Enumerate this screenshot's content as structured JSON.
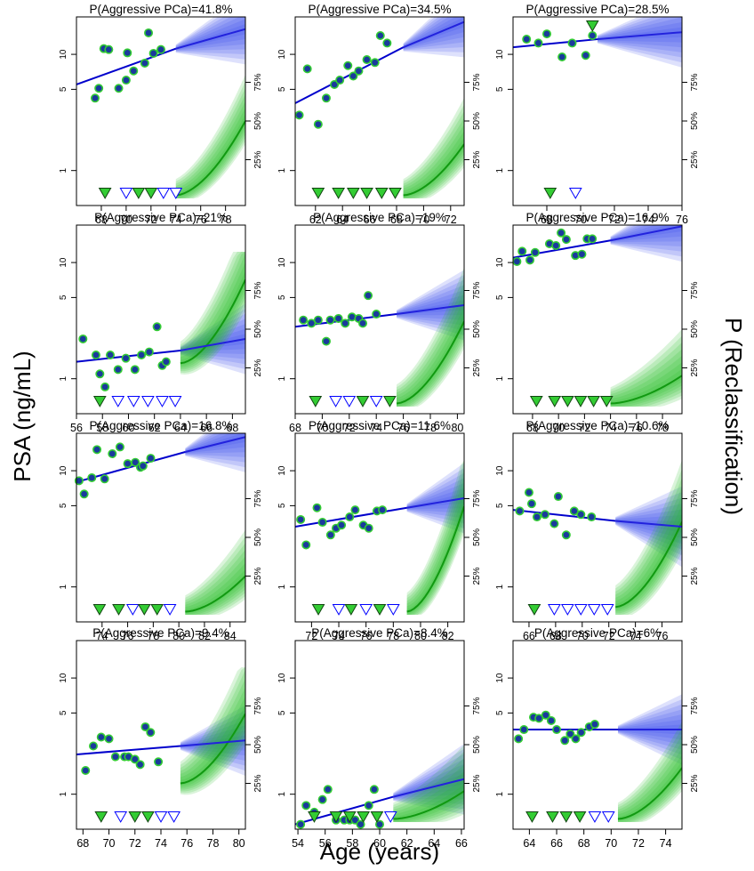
{
  "figure": {
    "y_axis_title": "PSA (ng/mL)",
    "x_axis_title": "Age (years)",
    "right_axis_title": "P (Reclassification)",
    "psa_tick_labels": [
      "1",
      "5",
      "10"
    ],
    "prob_tick_labels": [
      "25%",
      "50%",
      "75%"
    ],
    "colors": {
      "line": "#0000cc",
      "point_fill": "#1a3a9c",
      "point_edge": "#33cc33",
      "fan_blue": "#3344ee",
      "fan_green": "#22bb22",
      "marker_green": "#33cc33",
      "marker_open": "#0000ff"
    }
  },
  "chart_data": [
    {
      "type": "scatter",
      "title": "P(Aggressive PCa)=41.8%",
      "xlim": [
        66,
        79.6
      ],
      "xticks": [
        68,
        70,
        72,
        74,
        76,
        78
      ],
      "ylim_log": [
        0.5,
        21
      ],
      "age": [
        67.5,
        67.8,
        68.2,
        68.6,
        69.4,
        70,
        70.1,
        70.6,
        71.5,
        71.8,
        72.2,
        72.8
      ],
      "psa": [
        4.2,
        5.1,
        11.2,
        11.0,
        5.1,
        6.0,
        10.3,
        7.2,
        8.4,
        15.3,
        10.2,
        11.0
      ],
      "trend": {
        "x_start": 66,
        "y_start": 5.5,
        "x_end": 74,
        "y_end": 11.2
      },
      "projection": {
        "x_start": 74,
        "y_start": 11.2,
        "x_end": 79.6,
        "y_end": 16.5,
        "spread": 0.7
      },
      "prob_curve": {
        "start": 0.02,
        "end": 0.5,
        "spread": 0.3
      },
      "biopsy_ages": [
        68.3,
        70,
        71,
        72,
        73,
        74
      ],
      "biopsy_reclassified": [
        true,
        false,
        true,
        true,
        false,
        false
      ]
    },
    {
      "type": "scatter",
      "title": "P(Aggressive PCa)=34.5%",
      "xlim": [
        60.5,
        73
      ],
      "xticks": [
        62,
        64,
        66,
        68,
        70,
        72
      ],
      "ylim_log": [
        0.5,
        21
      ],
      "age": [
        60.8,
        61.4,
        62.2,
        62.8,
        63.4,
        63.8,
        64.4,
        64.8,
        65.2,
        65.8,
        66.4,
        66.8,
        67.3
      ],
      "psa": [
        3.0,
        7.5,
        2.5,
        4.2,
        5.5,
        6.0,
        8.0,
        6.5,
        7.2,
        9.0,
        8.5,
        14.5,
        12.5
      ],
      "trend": {
        "x_start": 60.5,
        "y_start": 3.8,
        "x_end": 68.5,
        "y_end": 11.5
      },
      "projection": {
        "x_start": 68.5,
        "y_start": 11.5,
        "x_end": 73,
        "y_end": 19,
        "spread": 0.7
      },
      "prob_curve": {
        "start": 0.02,
        "end": 0.35,
        "spread": 0.3
      },
      "biopsy_ages": [
        62.2,
        63.7,
        64.8,
        65.8,
        66.9,
        67.9
      ],
      "biopsy_reclassified": [
        true,
        true,
        true,
        true,
        true,
        true
      ]
    },
    {
      "type": "scatter",
      "title": "P(Aggressive PCa)=28.5%",
      "xlim": [
        66,
        76
      ],
      "xticks": [
        68,
        70,
        72,
        74,
        76
      ],
      "ylim_log": [
        0.5,
        21
      ],
      "age": [
        66.8,
        67.5,
        68,
        68.9,
        69.5,
        70.3,
        70.7
      ],
      "psa": [
        13.5,
        12.5,
        15.0,
        9.5,
        12.5,
        9.8,
        14.5
      ],
      "trend": {
        "x_start": 66,
        "y_start": 11.5,
        "x_end": 71,
        "y_end": 13.5
      },
      "projection": {
        "x_start": 71,
        "y_start": 13.5,
        "x_end": 76,
        "y_end": 15.5,
        "spread": 0.7
      },
      "prob_curve": {
        "start": 1,
        "end": 1,
        "spread": 0
      },
      "biopsy_ages": [
        68.2,
        69.7,
        70.7
      ],
      "biopsy_reclassified": [
        true,
        false,
        true
      ],
      "biopsy_marker_top": [
        false,
        false,
        true
      ]
    },
    {
      "type": "scatter",
      "title": "P(Aggressive PCa)=21%",
      "xlim": [
        56,
        69
      ],
      "xticks": [
        56,
        58,
        60,
        62,
        64,
        66,
        68
      ],
      "ylim_log": [
        0.5,
        21
      ],
      "age": [
        56.5,
        57.5,
        57.8,
        58.2,
        58.6,
        59.2,
        59.8,
        60.5,
        61,
        61.6,
        62.2,
        62.6,
        62.9
      ],
      "psa": [
        2.2,
        1.6,
        1.1,
        0.85,
        1.6,
        1.2,
        1.5,
        1.2,
        1.6,
        1.7,
        2.8,
        1.3,
        1.4
      ],
      "trend": {
        "x_start": 56,
        "y_start": 1.4,
        "x_end": 64,
        "y_end": 1.75
      },
      "projection": {
        "x_start": 64,
        "y_start": 1.75,
        "x_end": 69,
        "y_end": 2.2,
        "spread": 0.7
      },
      "prob_curve": {
        "start": 0.28,
        "end": 0.82,
        "spread": 0.4
      },
      "biopsy_ages": [
        57.8,
        59.2,
        60.4,
        61.5,
        62.6,
        63.6
      ],
      "biopsy_reclassified": [
        true,
        false,
        false,
        false,
        false,
        false
      ]
    },
    {
      "type": "scatter",
      "title": "P(Aggressive PCa)=19%",
      "xlim": [
        68,
        80.5
      ],
      "xticks": [
        68,
        70,
        72,
        74,
        76,
        78,
        80
      ],
      "ylim_log": [
        0.5,
        21
      ],
      "age": [
        68.6,
        69.2,
        69.7,
        70.3,
        70.6,
        71.2,
        71.7,
        72.2,
        72.7,
        73,
        73.4,
        74
      ],
      "psa": [
        3.2,
        3.0,
        3.2,
        2.1,
        3.2,
        3.3,
        3.0,
        3.4,
        3.3,
        3.0,
        5.2,
        3.6
      ],
      "trend": {
        "x_start": 68,
        "y_start": 2.8,
        "x_end": 75.5,
        "y_end": 3.6
      },
      "projection": {
        "x_start": 75.5,
        "y_start": 3.6,
        "x_end": 80.5,
        "y_end": 4.3,
        "spread": 0.7
      },
      "prob_curve": {
        "start": 0.02,
        "end": 0.55,
        "spread": 0.35
      },
      "biopsy_ages": [
        69.5,
        71,
        72,
        73,
        74,
        75
      ],
      "biopsy_reclassified": [
        true,
        false,
        false,
        true,
        false,
        true
      ]
    },
    {
      "type": "scatter",
      "title": "P(Aggressive PCa)=16.9%",
      "xlim": [
        66.5,
        79.5
      ],
      "xticks": [
        68,
        70,
        72,
        74,
        76,
        78
      ],
      "ylim_log": [
        0.5,
        21
      ],
      "age": [
        66.8,
        67.2,
        67.8,
        68.2,
        69.3,
        69.8,
        70.2,
        70.6,
        71.3,
        71.8,
        72.2,
        72.6
      ],
      "psa": [
        10.2,
        12.5,
        10.5,
        12.2,
        14.5,
        14.0,
        18.0,
        15.8,
        11.5,
        11.8,
        16.0,
        16.0
      ],
      "trend": {
        "x_start": 66.5,
        "y_start": 11.0,
        "x_end": 74,
        "y_end": 15.5
      },
      "projection": {
        "x_start": 74,
        "y_start": 15.5,
        "x_end": 79.5,
        "y_end": 20.5,
        "spread": 0.7
      },
      "prob_curve": {
        "start": 0.02,
        "end": 0.2,
        "spread": 0.3
      },
      "biopsy_ages": [
        68.3,
        69.7,
        70.7,
        71.7,
        72.7,
        73.7
      ],
      "biopsy_reclassified": [
        true,
        true,
        true,
        true,
        true,
        true
      ]
    },
    {
      "type": "scatter",
      "title": "P(Aggressive PCa)=16.8%",
      "xlim": [
        72,
        85.2
      ],
      "xticks": [
        74,
        76,
        78,
        80,
        82,
        84
      ],
      "ylim_log": [
        0.5,
        21
      ],
      "age": [
        72.2,
        72.6,
        73.2,
        73.6,
        74.2,
        74.8,
        75.4,
        76,
        76.6,
        77,
        77.2,
        77.8
      ],
      "psa": [
        8.2,
        6.3,
        8.7,
        15.2,
        8.5,
        14.0,
        16.0,
        11.5,
        11.8,
        10.7,
        11.0,
        12.8
      ],
      "trend": {
        "x_start": 72,
        "y_start": 8.0,
        "x_end": 80.5,
        "y_end": 14.5
      },
      "projection": {
        "x_start": 80.5,
        "y_start": 14.5,
        "x_end": 85.2,
        "y_end": 19.5,
        "spread": 0.7
      },
      "prob_curve": {
        "start": 0.02,
        "end": 0.25,
        "spread": 0.3
      },
      "biopsy_ages": [
        73.8,
        75.3,
        76.4,
        77.3,
        78.3,
        79.3
      ],
      "biopsy_reclassified": [
        true,
        true,
        false,
        true,
        true,
        false
      ]
    },
    {
      "type": "scatter",
      "title": "P(Aggressive PCa)=11.6%",
      "xlim": [
        70.8,
        83.2
      ],
      "xticks": [
        72,
        74,
        76,
        78,
        80,
        82
      ],
      "ylim_log": [
        0.5,
        21
      ],
      "age": [
        71.2,
        71.6,
        72.4,
        72.8,
        73.4,
        73.8,
        74.2,
        74.8,
        75.2,
        75.8,
        76.2,
        76.8,
        77.2
      ],
      "psa": [
        3.8,
        2.3,
        4.8,
        3.6,
        2.8,
        3.2,
        3.4,
        4.0,
        4.6,
        3.4,
        3.2,
        4.5,
        4.6
      ],
      "trend": {
        "x_start": 70.8,
        "y_start": 3.3,
        "x_end": 79,
        "y_end": 4.8
      },
      "projection": {
        "x_start": 79,
        "y_start": 4.8,
        "x_end": 83.2,
        "y_end": 5.8,
        "spread": 0.7
      },
      "prob_curve": {
        "start": 0.02,
        "end": 0.7,
        "spread": 0.35
      },
      "biopsy_ages": [
        72.5,
        74,
        74.9,
        76,
        77,
        78
      ],
      "biopsy_reclassified": [
        true,
        false,
        true,
        false,
        true,
        false
      ]
    },
    {
      "type": "scatter",
      "title": "P(Aggressive PCa)=10.6%",
      "xlim": [
        64.8,
        77.5
      ],
      "xticks": [
        66,
        68,
        70,
        72,
        74,
        76
      ],
      "ylim_log": [
        0.5,
        21
      ],
      "age": [
        65.3,
        66,
        66.2,
        66.6,
        67.2,
        67.9,
        68.2,
        68.8,
        69.4,
        69.9,
        70.7
      ],
      "psa": [
        4.5,
        6.5,
        5.2,
        4.0,
        4.2,
        3.5,
        6.0,
        2.8,
        4.5,
        4.2,
        4.0
      ],
      "trend": {
        "x_start": 64.8,
        "y_start": 4.6,
        "x_end": 72.5,
        "y_end": 3.7
      },
      "projection": {
        "x_start": 72.5,
        "y_start": 3.7,
        "x_end": 77.5,
        "y_end": 3.3,
        "spread": 0.8
      },
      "prob_curve": {
        "start": 0.05,
        "end": 0.6,
        "spread": 0.4
      },
      "biopsy_ages": [
        66.4,
        67.9,
        68.9,
        69.9,
        70.9,
        71.9
      ],
      "biopsy_reclassified": [
        true,
        false,
        false,
        false,
        false,
        false
      ]
    },
    {
      "type": "scatter",
      "title": "P(Aggressive PCa)=9.4%",
      "xlim": [
        67.5,
        80.5
      ],
      "xticks": [
        68,
        70,
        72,
        74,
        76,
        78,
        80
      ],
      "ylim_log": [
        0.5,
        21
      ],
      "age": [
        68.2,
        68.8,
        69.4,
        70,
        70.5,
        71.2,
        71.5,
        72,
        72.4,
        72.8,
        73.2,
        73.8
      ],
      "psa": [
        1.6,
        2.6,
        3.1,
        3.0,
        2.1,
        2.1,
        2.1,
        2.0,
        1.8,
        3.8,
        3.4,
        1.9
      ],
      "trend": {
        "x_start": 67.5,
        "y_start": 2.2,
        "x_end": 75.5,
        "y_end": 2.6
      },
      "projection": {
        "x_start": 75.5,
        "y_start": 2.6,
        "x_end": 80.5,
        "y_end": 2.9,
        "spread": 0.7
      },
      "prob_curve": {
        "start": 0.25,
        "end": 0.7,
        "spread": 0.4
      },
      "biopsy_ages": [
        69.4,
        70.9,
        72,
        73,
        74,
        75
      ],
      "biopsy_reclassified": [
        true,
        false,
        true,
        true,
        false,
        false
      ]
    },
    {
      "type": "scatter",
      "title": "P(Aggressive PCa)=8.4%",
      "xlim": [
        53.8,
        66.2
      ],
      "xticks": [
        54,
        56,
        58,
        60,
        62,
        64,
        66
      ],
      "ylim_log": [
        0.5,
        21
      ],
      "age": [
        54.2,
        54.6,
        55.2,
        55.8,
        56.2,
        56.8,
        57.4,
        57.8,
        58.2,
        58.6,
        59.2,
        59.6,
        60
      ],
      "psa": [
        0.55,
        0.8,
        0.7,
        0.9,
        1.1,
        0.6,
        0.6,
        0.6,
        0.6,
        0.55,
        0.8,
        1.1,
        0.55
      ],
      "trend": {
        "x_start": 53.8,
        "y_start": 0.55,
        "x_end": 61,
        "y_end": 0.95
      },
      "projection": {
        "x_start": 61,
        "y_start": 0.95,
        "x_end": 66.2,
        "y_end": 1.35,
        "spread": 0.7
      },
      "prob_curve": {
        "start": 0.02,
        "end": 0.2,
        "spread": 0.3
      },
      "biopsy_ages": [
        55.2,
        56.8,
        57.8,
        58.8,
        59.8,
        60.8
      ],
      "biopsy_reclassified": [
        true,
        true,
        true,
        true,
        true,
        false
      ]
    },
    {
      "type": "scatter",
      "title": "P(Aggressive PCa)=6%",
      "xlim": [
        62.8,
        75.2
      ],
      "xticks": [
        64,
        66,
        68,
        70,
        72,
        74
      ],
      "ylim_log": [
        0.5,
        21
      ],
      "age": [
        63.2,
        63.6,
        64.3,
        64.7,
        65.2,
        65.6,
        66,
        66.6,
        67,
        67.4,
        67.8,
        68.4,
        68.8
      ],
      "psa": [
        3.0,
        3.6,
        4.6,
        4.5,
        4.8,
        4.3,
        3.6,
        2.9,
        3.3,
        3.0,
        3.4,
        3.8,
        4.0
      ],
      "trend": {
        "x_start": 62.8,
        "y_start": 3.6,
        "x_end": 70.5,
        "y_end": 3.6
      },
      "projection": {
        "x_start": 70.5,
        "y_start": 3.6,
        "x_end": 75.2,
        "y_end": 3.6,
        "spread": 0.7
      },
      "prob_curve": {
        "start": 0.02,
        "end": 0.35,
        "spread": 0.3
      },
      "biopsy_ages": [
        64.2,
        65.7,
        66.7,
        67.7,
        68.8,
        69.8
      ],
      "biopsy_reclassified": [
        true,
        true,
        true,
        true,
        false,
        false
      ]
    }
  ]
}
